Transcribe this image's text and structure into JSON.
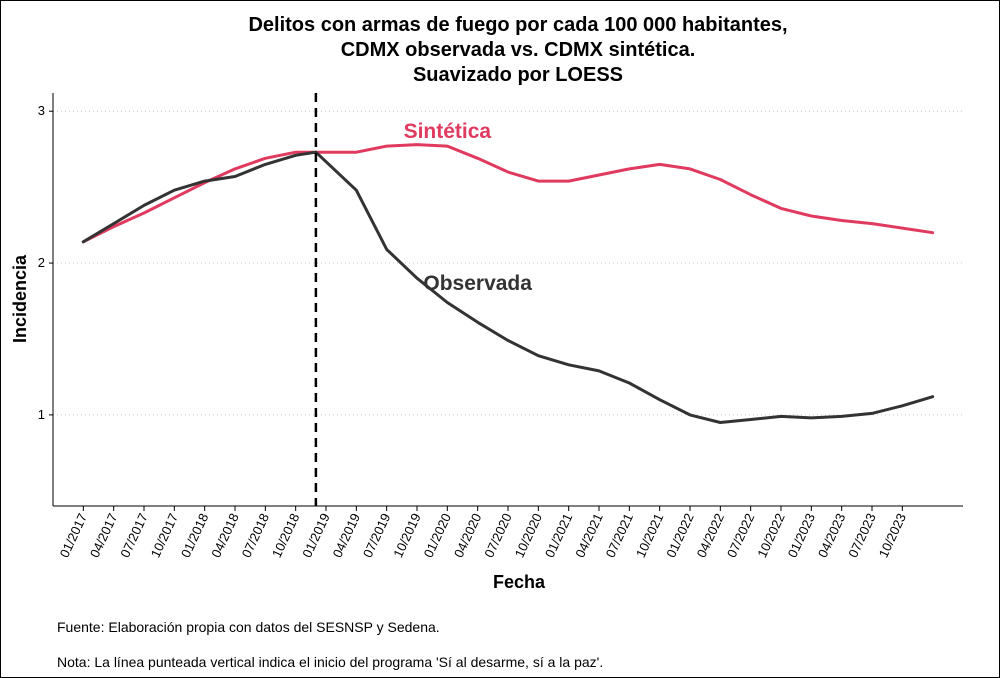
{
  "chart_data": {
    "type": "line",
    "title": [
      "Delitos con armas de fuego por cada 100 000 habitantes,",
      "CDMX observada vs. CDMX sintética.",
      "Suavizado por LOESS"
    ],
    "xlabel": "Fecha",
    "ylabel": "Incidencia",
    "x_ticks": [
      "01/2017",
      "04/2017",
      "07/2017",
      "10/2017",
      "01/2018",
      "04/2018",
      "07/2018",
      "10/2018",
      "01/2019",
      "04/2019",
      "07/2019",
      "10/2019",
      "01/2020",
      "04/2020",
      "07/2020",
      "10/2020",
      "01/2021",
      "04/2021",
      "07/2021",
      "10/2021",
      "01/2022",
      "04/2022",
      "07/2022",
      "10/2022",
      "01/2023",
      "04/2023",
      "07/2023",
      "10/2023"
    ],
    "y_ticks": [
      "1",
      "2",
      "3"
    ],
    "ylim": [
      0.4,
      3.12
    ],
    "xlim": [
      "2016-10",
      "2024-04"
    ],
    "grid": "horizontal dotted",
    "intervention": {
      "date": "2018-12",
      "style": "dashed vertical"
    },
    "series": [
      {
        "name": "Sintética",
        "color": "#e03a5f",
        "label_at": [
          "2020-01",
          2.87
        ],
        "points": [
          [
            "2017-01",
            2.14
          ],
          [
            "2017-04",
            2.24
          ],
          [
            "2017-07",
            2.33
          ],
          [
            "2017-10",
            2.43
          ],
          [
            "2018-01",
            2.53
          ],
          [
            "2018-04",
            2.62
          ],
          [
            "2018-07",
            2.69
          ],
          [
            "2018-10",
            2.73
          ],
          [
            "2018-12",
            2.73
          ],
          [
            "2019-04",
            2.73
          ],
          [
            "2019-07",
            2.77
          ],
          [
            "2019-10",
            2.78
          ],
          [
            "2020-01",
            2.77
          ],
          [
            "2020-04",
            2.69
          ],
          [
            "2020-07",
            2.6
          ],
          [
            "2020-10",
            2.54
          ],
          [
            "2021-01",
            2.54
          ],
          [
            "2021-04",
            2.58
          ],
          [
            "2021-07",
            2.62
          ],
          [
            "2021-10",
            2.65
          ],
          [
            "2022-01",
            2.62
          ],
          [
            "2022-04",
            2.55
          ],
          [
            "2022-07",
            2.45
          ],
          [
            "2022-10",
            2.36
          ],
          [
            "2023-01",
            2.31
          ],
          [
            "2023-04",
            2.28
          ],
          [
            "2023-07",
            2.26
          ],
          [
            "2023-10",
            2.23
          ],
          [
            "2024-01",
            2.2
          ]
        ]
      },
      {
        "name": "Observada",
        "color": "#333333",
        "label_at": [
          "2020-04",
          1.87
        ],
        "points": [
          [
            "2017-01",
            2.14
          ],
          [
            "2017-04",
            2.26
          ],
          [
            "2017-07",
            2.38
          ],
          [
            "2017-10",
            2.48
          ],
          [
            "2018-01",
            2.54
          ],
          [
            "2018-04",
            2.57
          ],
          [
            "2018-07",
            2.65
          ],
          [
            "2018-10",
            2.71
          ],
          [
            "2018-12",
            2.73
          ],
          [
            "2019-04",
            2.48
          ],
          [
            "2019-07",
            2.09
          ],
          [
            "2019-10",
            1.9
          ],
          [
            "2020-01",
            1.74
          ],
          [
            "2020-04",
            1.61
          ],
          [
            "2020-07",
            1.49
          ],
          [
            "2020-10",
            1.39
          ],
          [
            "2021-01",
            1.33
          ],
          [
            "2021-04",
            1.29
          ],
          [
            "2021-07",
            1.21
          ],
          [
            "2021-10",
            1.1
          ],
          [
            "2022-01",
            1.0
          ],
          [
            "2022-04",
            0.95
          ],
          [
            "2022-07",
            0.97
          ],
          [
            "2022-10",
            0.99
          ],
          [
            "2023-01",
            0.98
          ],
          [
            "2023-04",
            0.99
          ],
          [
            "2023-07",
            1.01
          ],
          [
            "2023-10",
            1.06
          ],
          [
            "2024-01",
            1.12
          ]
        ]
      }
    ]
  },
  "notes": {
    "source": "Fuente: Elaboración propia con datos del SESNSP y Sedena.",
    "note": "Nota: La línea punteada vertical indica el inicio del programa 'Sí al desarme, sí a la paz'."
  }
}
